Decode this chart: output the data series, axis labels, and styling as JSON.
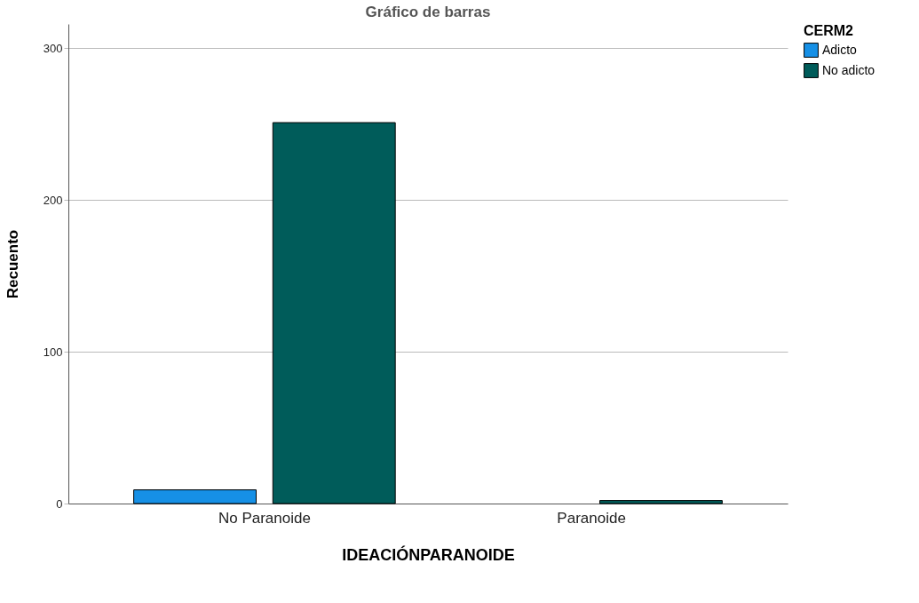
{
  "chart_data": {
    "type": "bar",
    "title": "Gráfico de barras",
    "xlabel": "IDEACIÓNPARANOIDE",
    "ylabel": "Recuento",
    "legend_title": "CERM2",
    "categories": [
      "No Paranoide",
      "Paranoide"
    ],
    "series": [
      {
        "name": "Adicto",
        "color": "#1690e6",
        "values": [
          9,
          null
        ]
      },
      {
        "name": "No adicto",
        "color": "#005c5a",
        "values": [
          251,
          2
        ]
      }
    ],
    "ylim": [
      0,
      316
    ],
    "yticks": [
      0,
      100,
      200,
      300
    ],
    "grid": "y",
    "legend": "top right"
  }
}
